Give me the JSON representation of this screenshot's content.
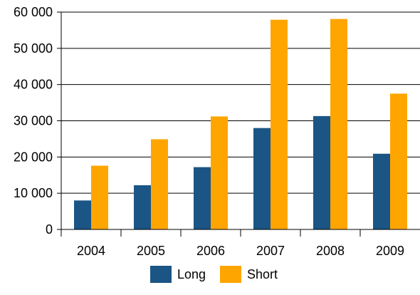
{
  "chart_data": {
    "type": "bar",
    "categories": [
      "2004",
      "2005",
      "2006",
      "2007",
      "2008",
      "2009"
    ],
    "series": [
      {
        "name": "Long",
        "color": "#1a5585",
        "values": [
          8000,
          12200,
          17200,
          28000,
          31300,
          20900
        ]
      },
      {
        "name": "Short",
        "color": "#ffa500",
        "values": [
          17600,
          24900,
          31200,
          57900,
          58100,
          37500
        ]
      }
    ],
    "ylim": [
      0,
      60000
    ],
    "yticks": [
      0,
      10000,
      20000,
      30000,
      40000,
      50000,
      60000
    ],
    "ytick_labels": [
      "0",
      "10 000",
      "20 000",
      "30 000",
      "40 000",
      "50 000",
      "60 000"
    ],
    "grid": true,
    "legend_position": "bottom-center"
  }
}
